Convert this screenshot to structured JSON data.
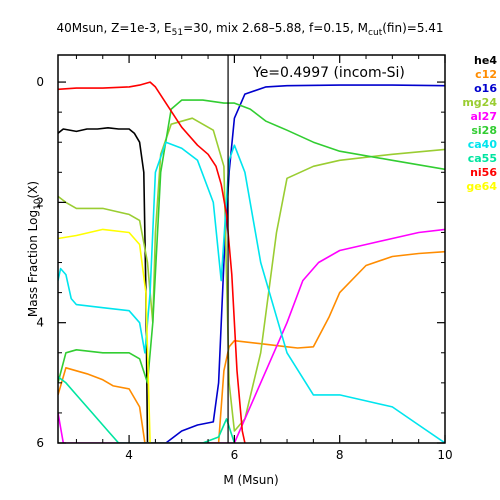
{
  "chart_data": {
    "type": "line",
    "title": {
      "main": "40Msun, Z=1e-3, E",
      "e_sub": "51",
      "part2": "=30, mix 2.68–5.88, f=0.15, M",
      "m_sub": "cut",
      "part3": "(fin)=5.41"
    },
    "xlabel": "M (Msun)",
    "ylabel": {
      "main": "Mass Fraction  Log",
      "sub": "10",
      "tail": "(X)"
    },
    "xlim": [
      2.65,
      10
    ],
    "ylim": [
      -6,
      0.45
    ],
    "xticks": [
      4,
      6,
      8,
      10
    ],
    "yticks": [
      0,
      -2,
      -4,
      -6
    ],
    "ytick_labels": [
      "0",
      "2",
      "4",
      "6"
    ],
    "vline_x": 5.88,
    "annotation": "Ye=0.4997  (incom-Si)",
    "grid": false,
    "legend_position": "right-outside",
    "series": [
      {
        "name": "he4",
        "color": "#000000",
        "points": [
          [
            2.65,
            -0.85
          ],
          [
            2.75,
            -0.78
          ],
          [
            3.0,
            -0.82
          ],
          [
            3.2,
            -0.78
          ],
          [
            3.4,
            -0.78
          ],
          [
            3.6,
            -0.76
          ],
          [
            3.8,
            -0.78
          ],
          [
            4.0,
            -0.78
          ],
          [
            4.1,
            -0.85
          ],
          [
            4.2,
            -1.0
          ],
          [
            4.28,
            -1.5
          ],
          [
            4.32,
            -3.5
          ],
          [
            4.35,
            -6.0
          ]
        ]
      },
      {
        "name": "c12",
        "color": "#ff8c00",
        "points": [
          [
            2.65,
            -5.2
          ],
          [
            2.8,
            -4.75
          ],
          [
            3.0,
            -4.8
          ],
          [
            3.2,
            -4.85
          ],
          [
            3.5,
            -4.95
          ],
          [
            3.7,
            -5.05
          ],
          [
            4.0,
            -5.1
          ],
          [
            4.2,
            -5.4
          ],
          [
            4.3,
            -6.0
          ],
          [
            5.7,
            -6.0
          ],
          [
            5.8,
            -4.8
          ],
          [
            5.9,
            -4.4
          ],
          [
            6.0,
            -4.3
          ],
          [
            6.5,
            -4.35
          ],
          [
            7.0,
            -4.4
          ],
          [
            7.2,
            -4.42
          ],
          [
            7.5,
            -4.4
          ],
          [
            7.8,
            -3.9
          ],
          [
            8.0,
            -3.5
          ],
          [
            8.5,
            -3.05
          ],
          [
            9.0,
            -2.9
          ],
          [
            9.5,
            -2.85
          ],
          [
            10.0,
            -2.82
          ]
        ]
      },
      {
        "name": "o16",
        "color": "#0000cd",
        "points": [
          [
            4.7,
            -6.0
          ],
          [
            5.0,
            -5.8
          ],
          [
            5.3,
            -5.7
          ],
          [
            5.6,
            -5.65
          ],
          [
            5.7,
            -5.0
          ],
          [
            5.8,
            -3.0
          ],
          [
            5.9,
            -1.5
          ],
          [
            6.0,
            -0.6
          ],
          [
            6.2,
            -0.2
          ],
          [
            6.6,
            -0.08
          ],
          [
            7.0,
            -0.06
          ],
          [
            8.0,
            -0.05
          ],
          [
            9.0,
            -0.05
          ],
          [
            10.0,
            -0.06
          ]
        ]
      },
      {
        "name": "mg24",
        "color": "#9acd32",
        "points": [
          [
            2.65,
            -1.9
          ],
          [
            2.8,
            -2.0
          ],
          [
            3.0,
            -2.1
          ],
          [
            3.5,
            -2.1
          ],
          [
            4.0,
            -2.2
          ],
          [
            4.2,
            -2.3
          ],
          [
            4.35,
            -3.0
          ],
          [
            4.45,
            -4.0
          ],
          [
            4.5,
            -2.5
          ],
          [
            4.6,
            -1.2
          ],
          [
            4.8,
            -0.7
          ],
          [
            5.2,
            -0.6
          ],
          [
            5.6,
            -0.8
          ],
          [
            5.8,
            -1.4
          ],
          [
            5.9,
            -5.0
          ],
          [
            6.0,
            -5.8
          ],
          [
            6.2,
            -5.6
          ],
          [
            6.5,
            -4.5
          ],
          [
            6.8,
            -2.5
          ],
          [
            7.0,
            -1.6
          ],
          [
            7.5,
            -1.4
          ],
          [
            8.0,
            -1.3
          ],
          [
            9.0,
            -1.2
          ],
          [
            10.0,
            -1.12
          ]
        ]
      },
      {
        "name": "al27",
        "color": "#ff00ff",
        "points": [
          [
            2.65,
            -5.5
          ],
          [
            2.75,
            -6.0
          ],
          [
            4.3,
            -6.0
          ],
          [
            6.0,
            -6.0
          ],
          [
            6.2,
            -5.6
          ],
          [
            6.5,
            -5.0
          ],
          [
            7.0,
            -4.0
          ],
          [
            7.3,
            -3.3
          ],
          [
            7.6,
            -3.0
          ],
          [
            8.0,
            -2.8
          ],
          [
            8.5,
            -2.7
          ],
          [
            9.0,
            -2.6
          ],
          [
            9.5,
            -2.5
          ],
          [
            10.0,
            -2.45
          ]
        ]
      },
      {
        "name": "si28",
        "color": "#32cd32",
        "points": [
          [
            2.65,
            -5.0
          ],
          [
            2.8,
            -4.5
          ],
          [
            3.0,
            -4.45
          ],
          [
            3.5,
            -4.5
          ],
          [
            4.0,
            -4.5
          ],
          [
            4.2,
            -4.6
          ],
          [
            4.35,
            -5.0
          ],
          [
            4.45,
            -4.0
          ],
          [
            4.6,
            -1.5
          ],
          [
            4.8,
            -0.45
          ],
          [
            5.0,
            -0.3
          ],
          [
            5.4,
            -0.3
          ],
          [
            5.8,
            -0.35
          ],
          [
            6.0,
            -0.35
          ],
          [
            6.3,
            -0.45
          ],
          [
            6.6,
            -0.65
          ],
          [
            7.0,
            -0.8
          ],
          [
            7.5,
            -1.0
          ],
          [
            8.0,
            -1.15
          ],
          [
            9.0,
            -1.3
          ],
          [
            10.0,
            -1.45
          ]
        ]
      },
      {
        "name": "ca40",
        "color": "#00e5ee",
        "points": [
          [
            2.65,
            -3.3
          ],
          [
            2.7,
            -3.1
          ],
          [
            2.8,
            -3.2
          ],
          [
            2.9,
            -3.6
          ],
          [
            3.0,
            -3.7
          ],
          [
            3.5,
            -3.75
          ],
          [
            4.0,
            -3.8
          ],
          [
            4.2,
            -4.0
          ],
          [
            4.3,
            -4.5
          ],
          [
            4.4,
            -3.5
          ],
          [
            4.5,
            -1.5
          ],
          [
            4.7,
            -1.0
          ],
          [
            5.0,
            -1.1
          ],
          [
            5.3,
            -1.3
          ],
          [
            5.6,
            -2.0
          ],
          [
            5.75,
            -3.3
          ],
          [
            5.9,
            -1.3
          ],
          [
            6.0,
            -1.05
          ],
          [
            6.2,
            -1.5
          ],
          [
            6.5,
            -3.0
          ],
          [
            7.0,
            -4.5
          ],
          [
            7.5,
            -5.2
          ],
          [
            8.0,
            -5.2
          ],
          [
            8.5,
            -5.3
          ],
          [
            9.0,
            -5.4
          ],
          [
            9.5,
            -5.7
          ],
          [
            10.0,
            -6.0
          ]
        ]
      },
      {
        "name": "ca55",
        "color": "#00e5a0",
        "points": [
          [
            2.65,
            -4.9
          ],
          [
            2.8,
            -5.0
          ],
          [
            3.0,
            -5.2
          ],
          [
            3.3,
            -5.5
          ],
          [
            3.6,
            -5.8
          ],
          [
            3.8,
            -6.0
          ],
          [
            4.5,
            -6.0
          ],
          [
            5.4,
            -6.0
          ],
          [
            5.7,
            -5.9
          ],
          [
            5.85,
            -5.6
          ],
          [
            6.0,
            -6.0
          ]
        ]
      },
      {
        "name": "ni56",
        "color": "#ff0000",
        "points": [
          [
            2.65,
            -0.12
          ],
          [
            3.0,
            -0.1
          ],
          [
            3.5,
            -0.1
          ],
          [
            4.0,
            -0.08
          ],
          [
            4.2,
            -0.05
          ],
          [
            4.4,
            0.0
          ],
          [
            4.5,
            -0.08
          ],
          [
            4.7,
            -0.35
          ],
          [
            5.0,
            -0.75
          ],
          [
            5.3,
            -1.05
          ],
          [
            5.5,
            -1.2
          ],
          [
            5.65,
            -1.4
          ],
          [
            5.75,
            -1.7
          ],
          [
            5.85,
            -2.2
          ],
          [
            5.95,
            -3.2
          ],
          [
            6.05,
            -4.8
          ],
          [
            6.15,
            -5.8
          ],
          [
            6.2,
            -6.0
          ]
        ]
      },
      {
        "name": "ge64",
        "color": "#ffff00",
        "points": [
          [
            2.65,
            -2.6
          ],
          [
            3.0,
            -2.55
          ],
          [
            3.5,
            -2.45
          ],
          [
            4.0,
            -2.5
          ],
          [
            4.2,
            -2.7
          ],
          [
            4.32,
            -3.5
          ],
          [
            4.4,
            -6.0
          ]
        ]
      }
    ]
  }
}
